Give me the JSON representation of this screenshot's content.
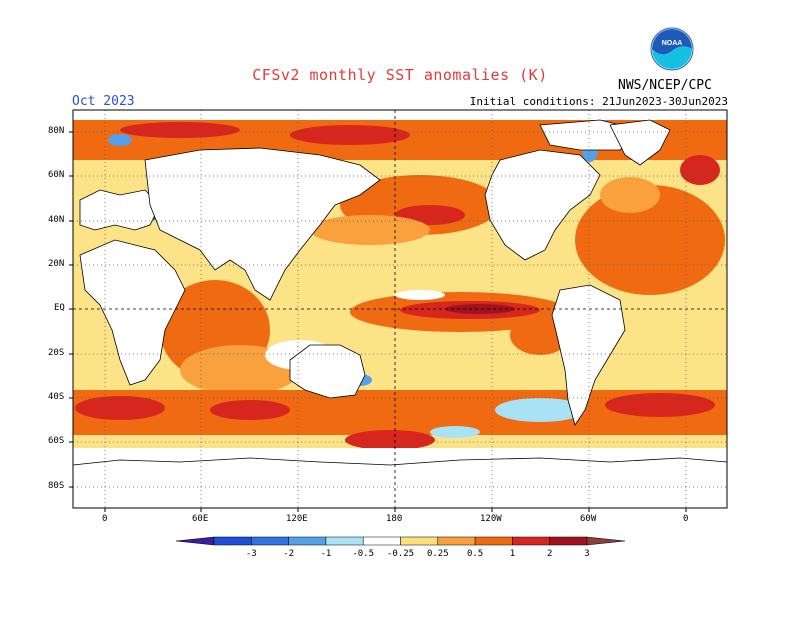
{
  "title": "CFSv2 monthly SST anomalies (K)",
  "month": "Oct 2023",
  "initial_conditions": "Initial conditions: 21Jun2023-30Jun2023",
  "agency": "NWS/NCEP/CPC",
  "logo_text": "NOAA",
  "lat_labels": [
    "80N",
    "60N",
    "40N",
    "20N",
    "EQ",
    "20S",
    "40S",
    "60S",
    "80S"
  ],
  "lon_labels": [
    "0",
    "60E",
    "120E",
    "180",
    "120W",
    "60W",
    "0"
  ],
  "colorbar": {
    "tick_labels": [
      "-3",
      "-2",
      "-1",
      "-0.5",
      "-0.25",
      "0.25",
      "0.5",
      "1",
      "2",
      "3"
    ],
    "colors": [
      "#3a1fa0",
      "#1f4fd8",
      "#2f73e0",
      "#55a0ea",
      "#a9e2f4",
      "#ffffff",
      "#fde07a",
      "#f9a13c",
      "#f06a12",
      "#d7261e",
      "#a0121e",
      "#8a4038"
    ]
  },
  "land_color": "#ffffff",
  "coast_color": "#000000",
  "grid_color": "#333333"
}
